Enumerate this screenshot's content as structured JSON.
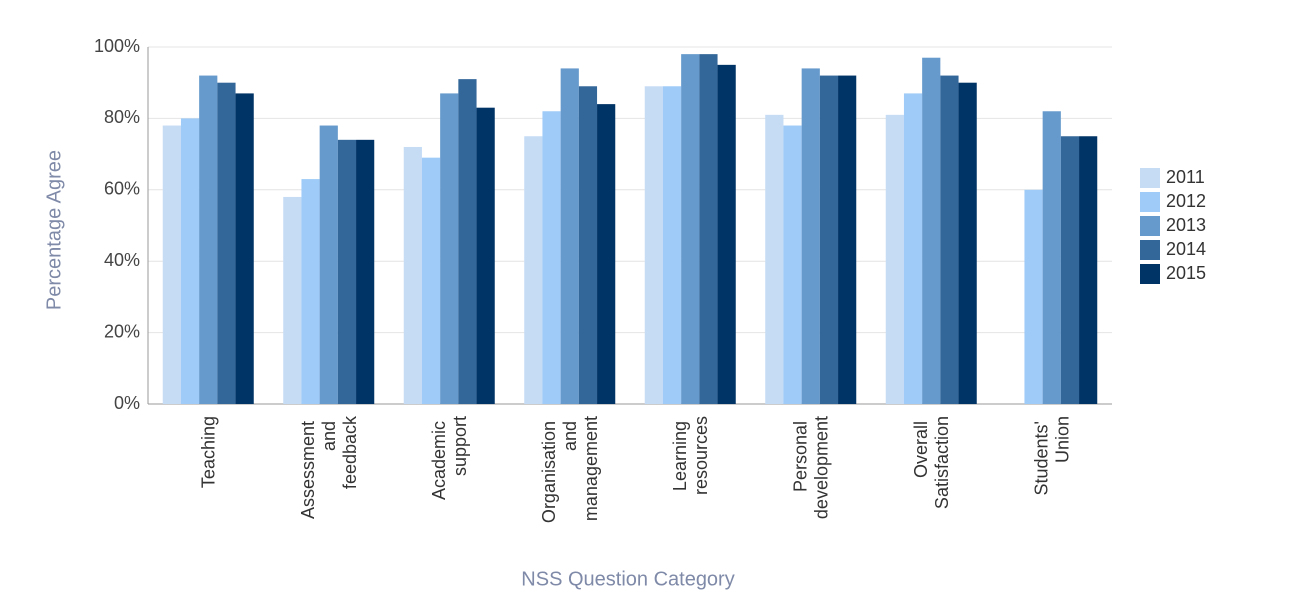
{
  "chart_data": {
    "type": "bar",
    "x_label": "NSS Question Category",
    "y_label": "Percentage Agree",
    "categories": [
      "Teaching",
      "Assessment and feedback",
      "Academic support",
      "Organisation and management",
      "Learning resources",
      "Personal development",
      "Overall Satisfaction",
      "Students' Union"
    ],
    "series": [
      {
        "name": "2011",
        "color": "#c6dcf5",
        "values": [
          78,
          58,
          72,
          75,
          89,
          81,
          81,
          null
        ]
      },
      {
        "name": "2012",
        "color": "#9ecbf7",
        "values": [
          80,
          63,
          69,
          82,
          89,
          78,
          87,
          60
        ]
      },
      {
        "name": "2013",
        "color": "#6699cc",
        "values": [
          92,
          78,
          87,
          94,
          98,
          94,
          97,
          82
        ]
      },
      {
        "name": "2014",
        "color": "#336699",
        "values": [
          90,
          74,
          91,
          89,
          98,
          92,
          92,
          75
        ]
      },
      {
        "name": "2015",
        "color": "#003366",
        "values": [
          87,
          74,
          83,
          84,
          95,
          92,
          90,
          75
        ]
      }
    ],
    "ylim": [
      0,
      100
    ],
    "yticks": [
      {
        "value": 0,
        "label": "0%"
      },
      {
        "value": 20,
        "label": "20%"
      },
      {
        "value": 40,
        "label": "40%"
      },
      {
        "value": 60,
        "label": "60%"
      },
      {
        "value": 80,
        "label": "80%"
      },
      {
        "value": 100,
        "label": "100%"
      }
    ],
    "grid": true,
    "legend": "right"
  }
}
